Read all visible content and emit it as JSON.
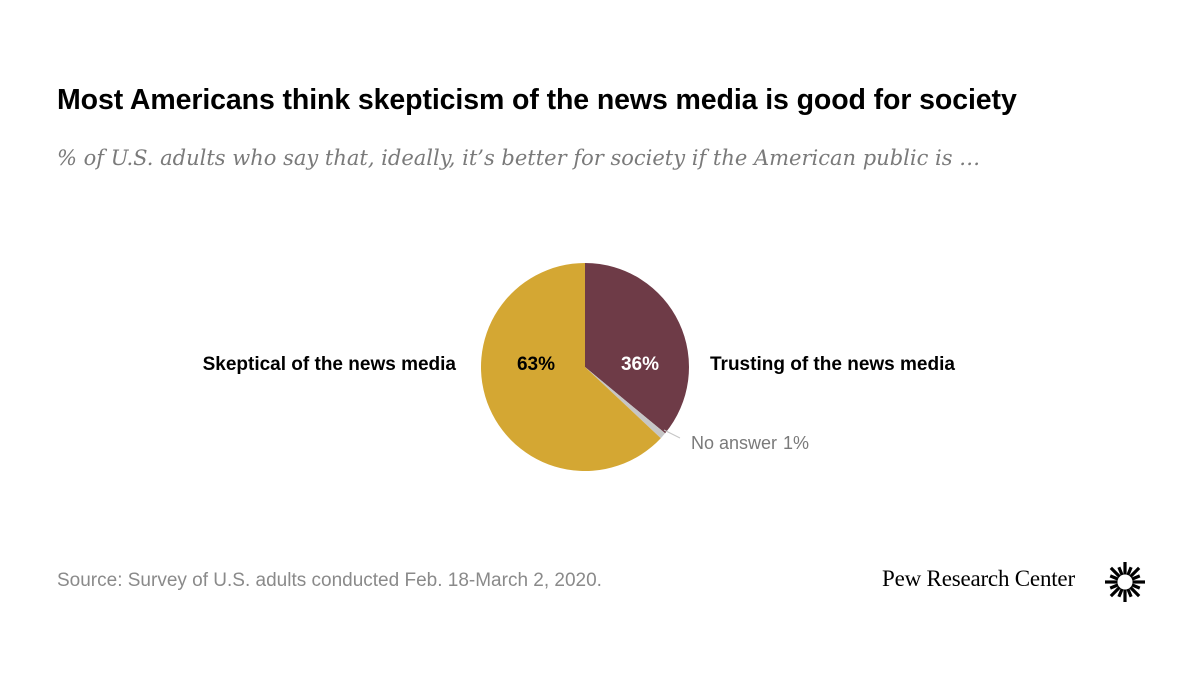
{
  "title": "Most Americans think skepticism of the news media is good for society",
  "subtitle": "% of U.S. adults who say that, ideally, it’s better for society if the American public is …",
  "source": "Source: Survey of U.S. adults conducted Feb. 18-March 2, 2020.",
  "brand": "Pew Research Center",
  "logo_icon": "sunburst-logo-icon",
  "chart_data": {
    "type": "pie",
    "title": "Most Americans think skepticism of the news media is good for society",
    "slices": [
      {
        "label": "Trusting of the news media",
        "value": 36,
        "value_label": "36%",
        "color": "#6e3b47"
      },
      {
        "label": "No answer",
        "value": 1,
        "value_label": "1%",
        "color": "#c6c6c6"
      },
      {
        "label": "Skeptical of the news media",
        "value": 63,
        "value_label": "63%",
        "color": "#d4a733"
      }
    ],
    "start": "12 o'clock",
    "direction": "clockwise"
  }
}
